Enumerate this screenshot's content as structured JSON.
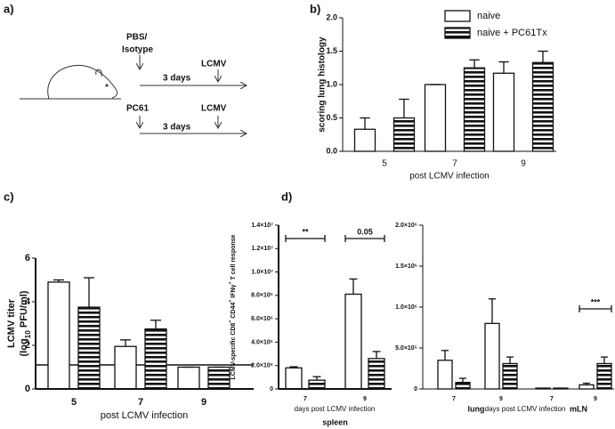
{
  "panel_labels": [
    "a)",
    "b)",
    "c)",
    "d)"
  ],
  "diagram": {
    "treatments": [
      {
        "label_lines": [
          "PBS/",
          "Isotype"
        ],
        "interval": "3 days",
        "infection": "LCMV"
      },
      {
        "label_lines": [
          "PC61"
        ],
        "interval": "3 days",
        "infection": "LCMV"
      }
    ]
  },
  "chart_data": [
    {
      "type": "bar",
      "ylabel": "scoring lung histology",
      "xlabel": "post LCMV infection",
      "categories": [
        "5",
        "7",
        "9"
      ],
      "ylim": [
        0,
        2
      ],
      "yticks": [
        {
          "value": 0,
          "label": "0.0"
        },
        {
          "value": 0.5,
          "label": "0.5"
        },
        {
          "value": 1,
          "label": "1.0"
        },
        {
          "value": 1.5,
          "label": "1.5"
        },
        {
          "value": 2,
          "label": "2.0"
        }
      ],
      "series": [
        {
          "name": "naive",
          "color": "#ffffff",
          "pattern": "none",
          "values": [
            0.33,
            1.0,
            1.17
          ],
          "errors": [
            0.17,
            0,
            0.17
          ]
        },
        {
          "name": "naive + PC61Tx",
          "color": "#ffffff",
          "pattern": "stripes",
          "values": [
            0.5,
            1.25,
            1.33
          ],
          "errors": [
            0.28,
            0.12,
            0.17
          ]
        }
      ],
      "legend": "top-right"
    },
    {
      "type": "bar",
      "ylabel": [
        {
          "text": "LCMV titer",
          "line": 0
        },
        {
          "text": "(log",
          "line": 1
        },
        {
          "text": "10",
          "line": 1,
          "shift": "sub"
        },
        {
          "text": " PFU/ml)",
          "line": 1
        }
      ],
      "xlabel": "post LCMV infection",
      "categories": [
        "5",
        "7",
        "9"
      ],
      "ylim": [
        0,
        6
      ],
      "yticks": [
        0,
        2,
        4,
        6
      ],
      "reference_line": 1.1,
      "series": [
        {
          "color": "#ffffff",
          "pattern": "none",
          "values": [
            4.9,
            1.95,
            1.0
          ],
          "errors": [
            0.1,
            0.3,
            0
          ]
        },
        {
          "color": "#ffffff",
          "pattern": "stripes",
          "values": [
            3.75,
            2.75,
            1.0
          ],
          "errors": [
            1.35,
            0.4,
            0
          ]
        }
      ]
    },
    {
      "type": "bar",
      "ylabel": [
        {
          "text": "LCMV-specific CD8"
        },
        {
          "text": "+",
          "shift": "sup"
        },
        {
          "text": " CD44"
        },
        {
          "text": "+",
          "shift": "sup"
        },
        {
          "text": " IFNγ"
        },
        {
          "text": "+",
          "shift": "sup"
        },
        {
          "text": " T cell response"
        }
      ],
      "xlabel": "days post LCMV infection",
      "categories": [
        "7",
        "9"
      ],
      "group_labels": [
        "spleen"
      ],
      "ylim": [
        0,
        14000000
      ],
      "yticks": [
        {
          "value": 0,
          "label": "0"
        },
        {
          "value": 2000000,
          "label": "2.0×10⁶"
        },
        {
          "value": 4000000,
          "label": "4.0×10⁶"
        },
        {
          "value": 6000000,
          "label": "6.0×10⁶"
        },
        {
          "value": 8000000,
          "label": "8.0×10⁶"
        },
        {
          "value": 10000000,
          "label": "1.0×10⁷"
        },
        {
          "value": 12000000,
          "label": "1.2×10⁷"
        },
        {
          "value": 14000000,
          "label": "1.4×10⁷"
        }
      ],
      "annotations": [
        {
          "text": "**",
          "category": 0
        },
        {
          "text": "0.05",
          "category": 1
        }
      ],
      "series": [
        {
          "color": "#ffffff",
          "pattern": "none",
          "values": [
            1800000,
            8100000
          ],
          "errors": [
            100000,
            1300000
          ]
        },
        {
          "color": "#ffffff",
          "pattern": "stripes",
          "values": [
            750000,
            2600000
          ],
          "errors": [
            300000,
            600000
          ]
        }
      ]
    },
    {
      "type": "bar",
      "xlabel": "days post LCMV infection",
      "categories": [
        "7",
        "9",
        "7",
        "9"
      ],
      "group_labels": [
        "lung",
        "mLN"
      ],
      "ylim": [
        0,
        2000000
      ],
      "yticks": [
        {
          "value": 0,
          "label": "0"
        },
        {
          "value": 500000,
          "label": "5.0×10⁵"
        },
        {
          "value": 1000000,
          "label": "1.0×10⁶"
        },
        {
          "value": 1500000,
          "label": "1.5×10⁶"
        },
        {
          "value": 2000000,
          "label": "2.0×10⁶"
        }
      ],
      "annotations": [
        {
          "text": "***",
          "category": 3
        }
      ],
      "series": [
        {
          "color": "#ffffff",
          "pattern": "none",
          "values": [
            350000,
            800000,
            10000,
            50000
          ],
          "errors": [
            120000,
            300000,
            0,
            20000
          ]
        },
        {
          "color": "#ffffff",
          "pattern": "stripes",
          "values": [
            80000,
            310000,
            10000,
            310000
          ],
          "errors": [
            50000,
            80000,
            0,
            80000
          ]
        }
      ]
    }
  ]
}
